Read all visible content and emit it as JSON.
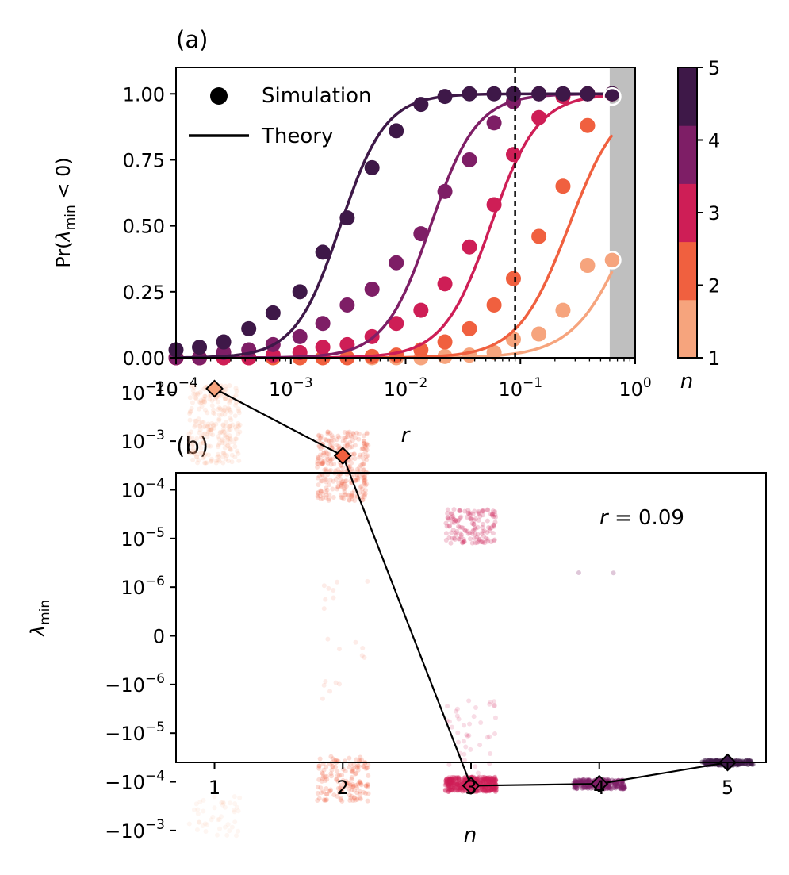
{
  "colors": {
    "n1": "#f6a47d",
    "n2": "#f0603f",
    "n3": "#ce1e56",
    "n4": "#7e1e66",
    "n5": "#3e1848",
    "shade": "#bfbfbf"
  },
  "chart_data": [
    {
      "type": "line",
      "panel_label": "(a)",
      "xlabel": "r",
      "ylabel_parts": [
        "Pr(",
        "λ",
        "min",
        " < 0)"
      ],
      "xscale": "log",
      "xlim": [
        0.0001,
        1
      ],
      "ylim": [
        0,
        1.1
      ],
      "x_ticks": [
        {
          "base": "10",
          "exp": "−4"
        },
        {
          "base": "10",
          "exp": "−3"
        },
        {
          "base": "10",
          "exp": "−2"
        },
        {
          "base": "10",
          "exp": "−1"
        },
        {
          "base": "10",
          "exp": "0"
        }
      ],
      "x_tick_values": [
        0.0001,
        0.001,
        0.01,
        0.1,
        1
      ],
      "y_ticks": [
        "0.00",
        "0.25",
        "0.50",
        "0.75",
        "1.00"
      ],
      "y_tick_values": [
        0,
        0.25,
        0.5,
        0.75,
        1.0
      ],
      "vline_x": 0.09,
      "shaded_region_x": [
        0.6,
        1
      ],
      "legend": {
        "position": "top-left",
        "entries": [
          "Simulation",
          "Theory"
        ]
      },
      "colorbar": {
        "label": "n",
        "ticks": [
          "1",
          "2",
          "3",
          "4",
          "5"
        ],
        "levels": [
          1,
          2,
          3,
          4,
          5
        ]
      },
      "sim_x": [
        0.0001,
        0.00016,
        0.00026,
        0.00043,
        0.0007,
        0.0012,
        0.0019,
        0.0031,
        0.0051,
        0.0083,
        0.0136,
        0.022,
        0.036,
        0.059,
        0.087,
        0.145,
        0.235,
        0.385,
        0.63
      ],
      "series": [
        {
          "n": 1,
          "colorKey": "n1",
          "sim_y": [
            0,
            0,
            0,
            0,
            0,
            0,
            0,
            0,
            0,
            0,
            0,
            0.005,
            0.01,
            0.02,
            0.07,
            0.09,
            0.18,
            0.35,
            0.37
          ],
          "theory_mid": 0.95,
          "theory_slope": 1.75
        },
        {
          "n": 2,
          "colorKey": "n2",
          "sim_y": [
            0,
            0,
            0,
            0,
            0,
            0,
            0,
            0,
            0.005,
            0.01,
            0.03,
            0.06,
            0.11,
            0.2,
            0.3,
            0.46,
            0.65,
            0.88,
            1.0
          ],
          "theory_mid": 0.265,
          "theory_slope": 1.95
        },
        {
          "n": 3,
          "colorKey": "n3",
          "sim_y": [
            0,
            0,
            0,
            0,
            0.01,
            0.02,
            0.04,
            0.05,
            0.08,
            0.13,
            0.18,
            0.28,
            0.42,
            0.58,
            0.77,
            0.91,
            0.99,
            1.0,
            1.0
          ],
          "theory_mid": 0.055,
          "theory_slope": 2.1
        },
        {
          "n": 4,
          "colorKey": "n4",
          "sim_y": [
            0,
            0,
            0.02,
            0.03,
            0.05,
            0.08,
            0.13,
            0.2,
            0.26,
            0.36,
            0.47,
            0.63,
            0.75,
            0.89,
            0.97,
            1.0,
            1.0,
            1.0,
            1.0
          ],
          "theory_mid": 0.0165,
          "theory_slope": 2.15
        },
        {
          "n": 5,
          "colorKey": "n5",
          "sim_y": [
            0.03,
            0.04,
            0.06,
            0.11,
            0.17,
            0.25,
            0.4,
            0.53,
            0.72,
            0.86,
            0.96,
            0.99,
            1.0,
            1.0,
            1.0,
            1.0,
            1.0,
            1.0,
            1.0
          ],
          "theory_mid": 0.0027,
          "theory_slope": 2.2
        }
      ],
      "highlight_points": [
        {
          "x": 0.63,
          "y": 0.99
        },
        {
          "x": 0.63,
          "y": 0.37
        }
      ]
    },
    {
      "type": "scatter",
      "panel_label": "(b)",
      "xlabel": "n",
      "ylabel_parts": [
        "λ",
        "min"
      ],
      "xscale": "linear",
      "yscale": "symlog",
      "linthresh": 1e-06,
      "xlim": [
        0.7,
        5.3
      ],
      "ylim_decades": [
        -3.6,
        2.35
      ],
      "x_ticks": [
        "1",
        "2",
        "3",
        "4",
        "5"
      ],
      "x_tick_values": [
        1,
        2,
        3,
        4,
        5
      ],
      "y_ticks": [
        {
          "sign": "",
          "base": "10",
          "exp": "−2",
          "value_t": 4
        },
        {
          "sign": "",
          "base": "10",
          "exp": "−3",
          "value_t": 3
        },
        {
          "sign": "",
          "base": "10",
          "exp": "−4",
          "value_t": 2
        },
        {
          "sign": "",
          "base": "10",
          "exp": "−5",
          "value_t": 1
        },
        {
          "sign": "",
          "base": "10",
          "exp": "−6",
          "value_t": 0
        },
        {
          "sign": "",
          "base": "0",
          "exp": "",
          "value_t": -1
        },
        {
          "sign": "−",
          "base": "10",
          "exp": "−6",
          "value_t": -2
        },
        {
          "sign": "−",
          "base": "10",
          "exp": "−5",
          "value_t": -3
        },
        {
          "sign": "−",
          "base": "10",
          "exp": "−4",
          "value_t": -4
        },
        {
          "sign": "−",
          "base": "10",
          "exp": "−3",
          "value_t": -5
        }
      ],
      "annotation": {
        "var": "r",
        "text": " = 0.09"
      },
      "median_line": [
        {
          "n": 1,
          "lambda": 0.012
        },
        {
          "n": 2,
          "lambda": 0.0005
        },
        {
          "n": 3,
          "lambda": -0.00012
        },
        {
          "n": 4,
          "lambda": -0.00011
        },
        {
          "n": 5,
          "lambda": -4e-05
        }
      ],
      "clusters": [
        {
          "n": 1,
          "colorKey": "n1",
          "groups": [
            {
              "lo": 0.00035,
              "hi": 0.014,
              "count": 260,
              "alpha": 0.16
            },
            {
              "lo": -0.0013,
              "hi": -0.0002,
              "count": 45,
              "alpha": 0.1
            }
          ]
        },
        {
          "n": 2,
          "colorKey": "n2",
          "groups": [
            {
              "lo": 6e-05,
              "hi": 0.0017,
              "count": 300,
              "alpha": 0.2
            },
            {
              "lo": -0.00025,
              "hi": -3e-05,
              "count": 150,
              "alpha": 0.22
            },
            {
              "lo": -2e-06,
              "hi": 3e-06,
              "count": 20,
              "alpha": 0.12
            }
          ]
        },
        {
          "n": 3,
          "colorKey": "n3",
          "groups": [
            {
              "lo": 8e-06,
              "hi": 4e-05,
              "count": 140,
              "alpha": 0.22
            },
            {
              "lo": -0.00016,
              "hi": -8e-05,
              "count": 360,
              "alpha": 0.35
            },
            {
              "lo": -7e-05,
              "hi": -2e-06,
              "count": 40,
              "alpha": 0.15
            }
          ]
        },
        {
          "n": 4,
          "colorKey": "n4",
          "groups": [
            {
              "lo": -0.00014,
              "hi": -9e-05,
              "count": 220,
              "alpha": 0.4
            },
            {
              "lo": 1.5e-06,
              "hi": 8e-06,
              "count": 2,
              "alpha": 0.25
            }
          ]
        },
        {
          "n": 5,
          "colorKey": "n5",
          "groups": [
            {
              "lo": -4.6e-05,
              "hi": -3.6e-05,
              "count": 160,
              "alpha": 0.45
            }
          ]
        }
      ]
    }
  ]
}
